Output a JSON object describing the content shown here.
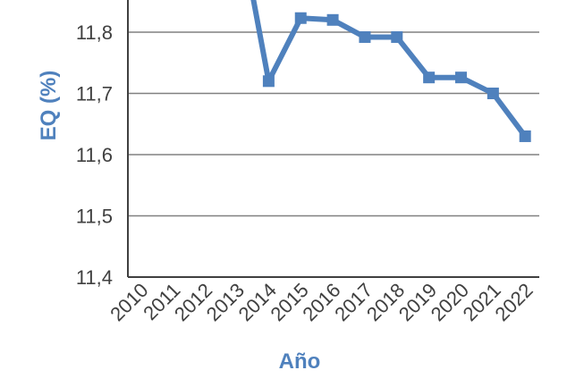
{
  "chart_data": {
    "type": "line",
    "title": "",
    "xlabel": "Año",
    "ylabel": "EQ (%)",
    "x": [
      "2010",
      "2011",
      "2012",
      "2013",
      "2014",
      "2015",
      "2016",
      "2017",
      "2018",
      "2019",
      "2020",
      "2021",
      "2022"
    ],
    "series": [
      {
        "values": [
          null,
          null,
          null,
          12.0,
          11.72,
          11.823,
          11.82,
          11.792,
          11.792,
          11.726,
          11.726,
          11.7,
          11.63
        ]
      }
    ],
    "ylim": [
      11.4,
      11.8
    ],
    "yticks": [
      "11,8",
      "11,7",
      "11,6",
      "11,5",
      "11,4"
    ],
    "grid": true,
    "colors": {
      "series": "#4f81bd",
      "axis_title": "#4f81bd",
      "gridline": "#808080",
      "axis": "#404040"
    }
  }
}
